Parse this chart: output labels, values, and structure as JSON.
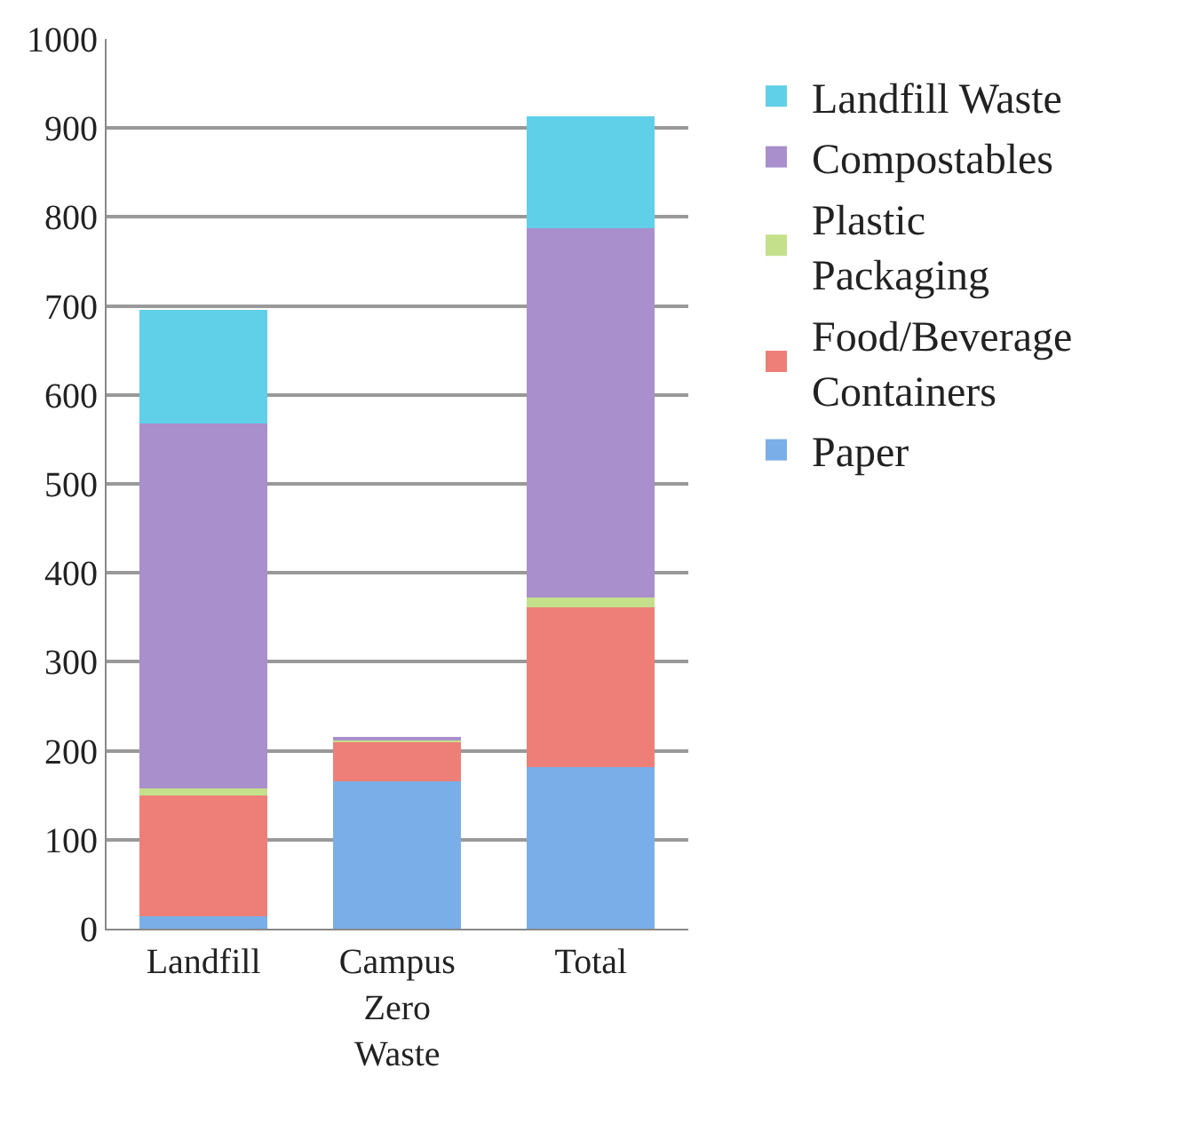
{
  "chart_data": {
    "type": "bar",
    "stacked": true,
    "categories": [
      "Landfill",
      "Campus Zero Waste",
      "Total"
    ],
    "series": [
      {
        "name": "Paper",
        "color": "#7aaee8",
        "values": [
          14,
          166,
          182
        ]
      },
      {
        "name": "Food/Beverage Containers",
        "color": "#ee7f78",
        "values": [
          136,
          45,
          179
        ]
      },
      {
        "name": "Plastic Packaging",
        "color": "#c4e08a",
        "values": [
          8,
          2,
          11
        ]
      },
      {
        "name": "Compostables",
        "color": "#a98fcc",
        "values": [
          410,
          2,
          415
        ]
      },
      {
        "name": "Landfill Waste",
        "color": "#5fd0e8",
        "values": [
          128,
          0,
          126
        ]
      }
    ],
    "ylim": [
      0,
      1000
    ],
    "yticks": [
      0,
      100,
      200,
      300,
      400,
      500,
      600,
      700,
      800,
      900,
      1000
    ],
    "grid": "y",
    "legend": "right"
  }
}
